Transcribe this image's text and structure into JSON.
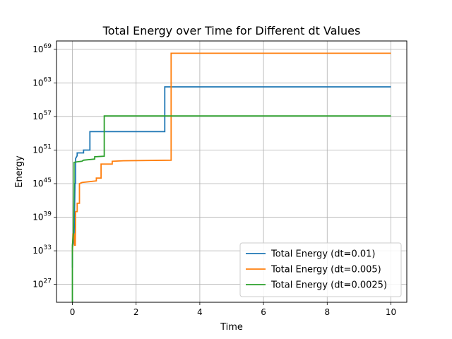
{
  "chart_data": {
    "type": "line",
    "title": "Total Energy over Time for Different dt Values",
    "xlabel": "Time",
    "ylabel": "Energy",
    "x_ticks": [
      0,
      2,
      4,
      6,
      8,
      10
    ],
    "y_scale": "log",
    "y_ticks_exponents": [
      27,
      33,
      39,
      45,
      51,
      57,
      63,
      69
    ],
    "xlim": [
      -0.5,
      10.5
    ],
    "ylim_log10": [
      23.8,
      70.5
    ],
    "grid": true,
    "legend_position": "lower-right",
    "series": [
      {
        "name": "Total Energy (dt=0.01)",
        "color": "#1f77b4",
        "points_log10": [
          [
            0.0,
            30.0
          ],
          [
            0.0,
            33.5
          ],
          [
            0.05,
            35.0
          ],
          [
            0.08,
            45.0
          ],
          [
            0.1,
            45.1
          ],
          [
            0.1,
            49.5
          ],
          [
            0.15,
            50.0
          ],
          [
            0.15,
            50.5
          ],
          [
            0.35,
            50.5
          ],
          [
            0.35,
            51.0
          ],
          [
            0.55,
            51.0
          ],
          [
            0.55,
            54.3
          ],
          [
            2.9,
            54.3
          ],
          [
            2.9,
            62.3
          ],
          [
            10.0,
            62.3
          ]
        ]
      },
      {
        "name": "Total Energy (dt=0.005)",
        "color": "#ff7f0e",
        "points_log10": [
          [
            0.0,
            32.5
          ],
          [
            0.02,
            36.0
          ],
          [
            0.05,
            36.0
          ],
          [
            0.07,
            34.0
          ],
          [
            0.09,
            34.0
          ],
          [
            0.1,
            40.0
          ],
          [
            0.15,
            40.0
          ],
          [
            0.15,
            41.5
          ],
          [
            0.22,
            41.5
          ],
          [
            0.22,
            45.0
          ],
          [
            0.3,
            45.2
          ],
          [
            0.75,
            45.5
          ],
          [
            0.75,
            46.0
          ],
          [
            0.9,
            46.0
          ],
          [
            0.9,
            48.5
          ],
          [
            1.25,
            48.5
          ],
          [
            1.25,
            49.0
          ],
          [
            1.6,
            49.1
          ],
          [
            3.1,
            49.2
          ],
          [
            3.1,
            68.3
          ],
          [
            10.0,
            68.3
          ]
        ]
      },
      {
        "name": "Total Energy (dt=0.0025)",
        "color": "#2ca02c",
        "points_log10": [
          [
            0.0,
            23.8
          ],
          [
            0.0,
            34.0
          ],
          [
            0.03,
            36.0
          ],
          [
            0.05,
            45.0
          ],
          [
            0.05,
            48.8
          ],
          [
            0.15,
            48.9
          ],
          [
            0.3,
            49.0
          ],
          [
            0.35,
            49.2
          ],
          [
            0.7,
            49.4
          ],
          [
            0.7,
            49.8
          ],
          [
            1.0,
            49.9
          ],
          [
            1.0,
            57.1
          ],
          [
            10.0,
            57.1
          ]
        ]
      }
    ]
  }
}
